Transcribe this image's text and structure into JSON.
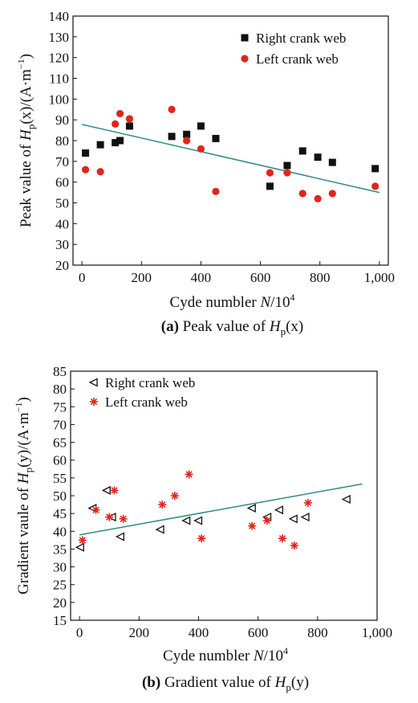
{
  "chart_data": [
    {
      "type": "scatter",
      "panel": "a",
      "caption": {
        "letter": "(a)",
        "text": "Peak value of ",
        "sym": "H",
        "sub": "p",
        "arg": "(x)"
      },
      "xlabel": {
        "text": "Cyde numbler ",
        "var": "N",
        "unit": "/10",
        "exp": "4"
      },
      "ylabel": {
        "prefix": "Peak value of ",
        "sym": "H",
        "sub": "p",
        "arg": "(x)",
        "unit": "/(A·m",
        "exp": "−1",
        "close": ")"
      },
      "xlim": [
        -30,
        1030
      ],
      "ylim": [
        20,
        140
      ],
      "xticks": [
        0,
        200,
        400,
        600,
        800,
        1000
      ],
      "xtick_labels": [
        "0",
        "200",
        "400",
        "600",
        "800",
        "1,000"
      ],
      "yticks": [
        20,
        30,
        40,
        50,
        60,
        70,
        80,
        90,
        100,
        110,
        120,
        130,
        140
      ],
      "legend_position": "top-right",
      "series": [
        {
          "name": "Right crank web",
          "marker": "square",
          "color": "#111111",
          "points": [
            [
              12,
              74
            ],
            [
              62,
              78
            ],
            [
              112,
              79
            ],
            [
              128,
              80
            ],
            [
              160,
              87
            ],
            [
              302,
              82
            ],
            [
              352,
              83
            ],
            [
              400,
              87
            ],
            [
              450,
              81
            ],
            [
              632,
              58
            ],
            [
              690,
              68
            ],
            [
              742,
              75
            ],
            [
              793,
              72
            ],
            [
              842,
              69.5
            ],
            [
              986,
              66.5
            ]
          ]
        },
        {
          "name": "Left crank web",
          "marker": "circle",
          "color": "#e0261c",
          "points": [
            [
              12,
              66
            ],
            [
              62,
              65
            ],
            [
              112,
              88
            ],
            [
              128,
              93
            ],
            [
              160,
              90.5
            ],
            [
              302,
              95
            ],
            [
              352,
              80
            ],
            [
              400,
              76
            ],
            [
              450,
              55.5
            ],
            [
              632,
              64.5
            ],
            [
              690,
              64.5
            ],
            [
              742,
              54.5
            ],
            [
              793,
              52
            ],
            [
              842,
              54.5
            ],
            [
              986,
              58
            ]
          ]
        }
      ],
      "trendline": {
        "color": "#2e8b8b",
        "x": [
          0,
          1000
        ],
        "y": [
          87.8,
          55
        ]
      }
    },
    {
      "type": "scatter",
      "panel": "b",
      "caption": {
        "letter": "(b)",
        "text": "Gradient value of ",
        "sym": "H",
        "sub": "p",
        "arg": "(y)"
      },
      "xlabel": {
        "text": "Cyde numbler ",
        "var": "N",
        "unit": "/10",
        "exp": "4"
      },
      "ylabel": {
        "prefix": "Gradient vaule of ",
        "sym": "H",
        "sub": "p",
        "arg": "(y)",
        "unit": "/(A·m",
        "exp": "−1",
        "close": ")"
      },
      "xlim": [
        -30,
        1000
      ],
      "ylim": [
        15,
        85
      ],
      "xticks": [
        0,
        200,
        400,
        600,
        800,
        1000
      ],
      "xtick_labels": [
        "0",
        "200",
        "400",
        "600",
        "800",
        "1,000"
      ],
      "yticks": [
        15,
        20,
        25,
        30,
        35,
        40,
        45,
        50,
        55,
        60,
        65,
        70,
        75,
        80,
        85
      ],
      "legend_position": "top-left",
      "series": [
        {
          "name": "Right crank web",
          "marker": "triangle-left",
          "color": "#111111",
          "points": [
            [
              3,
              35.5
            ],
            [
              45,
              46.5
            ],
            [
              92,
              51.5
            ],
            [
              110,
              44
            ],
            [
              138,
              38.5
            ],
            [
              272,
              40.5
            ],
            [
              360,
              43
            ],
            [
              400,
              43
            ],
            [
              580,
              46.5
            ],
            [
              632,
              44
            ],
            [
              672,
              46
            ],
            [
              720,
              43.5
            ],
            [
              760,
              44
            ],
            [
              898,
              49
            ]
          ]
        },
        {
          "name": "Left crank web",
          "marker": "asterisk",
          "color": "#e0261c",
          "points": [
            [
              10,
              37.5
            ],
            [
              55,
              46
            ],
            [
              100,
              44
            ],
            [
              117,
              51.5
            ],
            [
              147,
              43.5
            ],
            [
              278,
              47.5
            ],
            [
              320,
              50
            ],
            [
              368,
              56
            ],
            [
              410,
              38
            ],
            [
              580,
              41.5
            ],
            [
              630,
              43
            ],
            [
              682,
              38
            ],
            [
              722,
              36
            ],
            [
              768,
              48
            ]
          ]
        }
      ],
      "trendline": {
        "color": "#2e8b8b",
        "x": [
          0,
          950
        ],
        "y": [
          39,
          53.3
        ]
      }
    }
  ]
}
